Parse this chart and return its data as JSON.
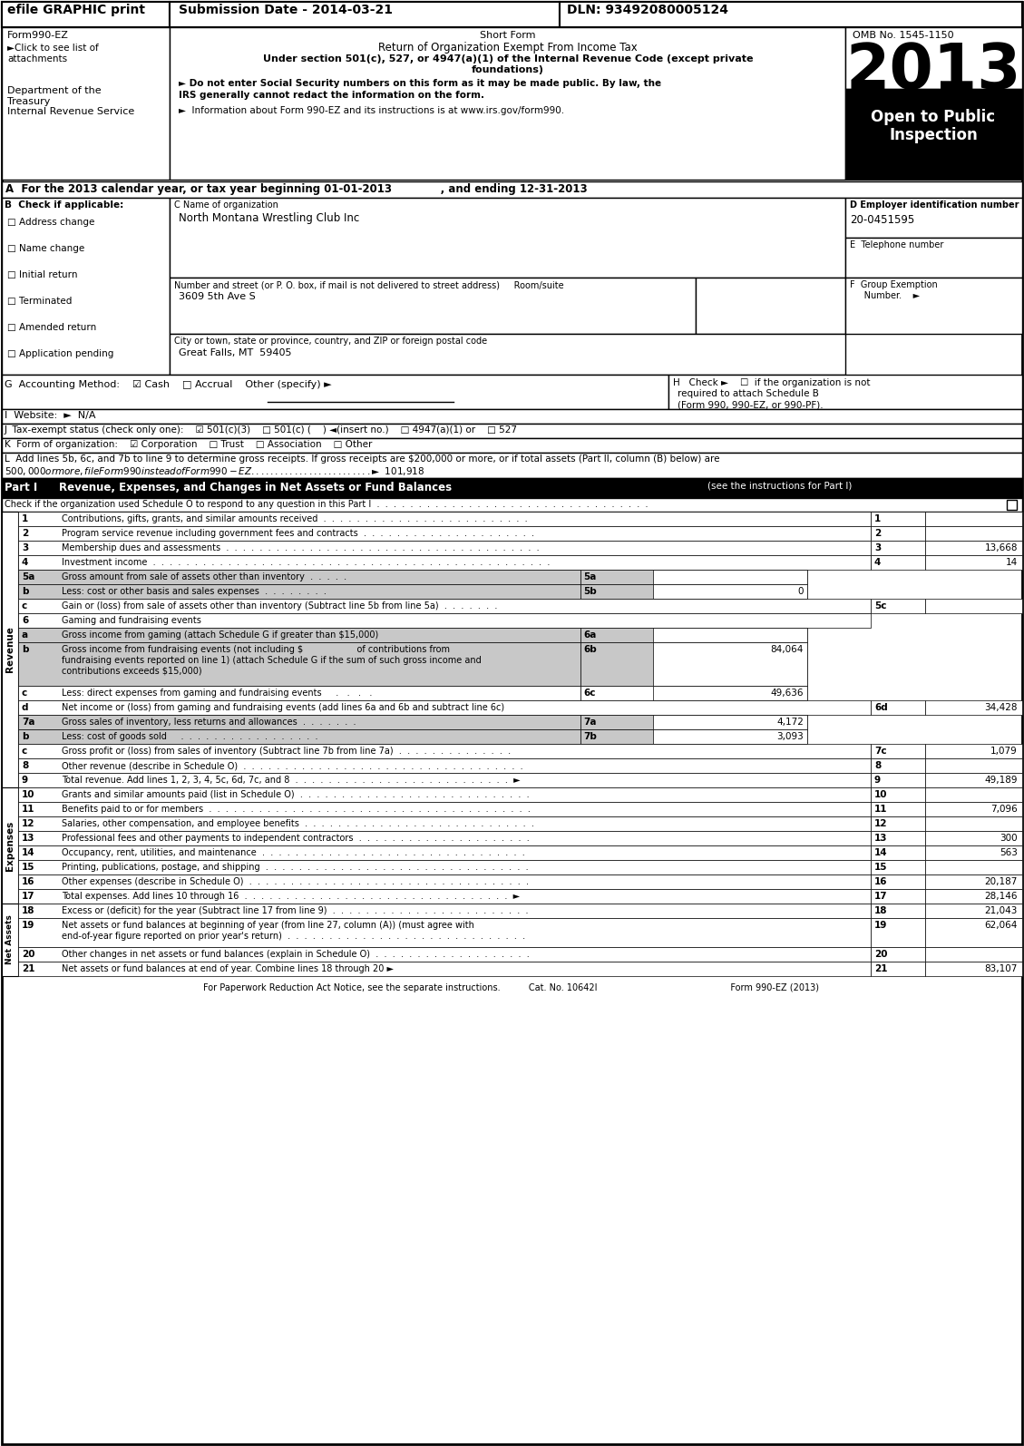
{
  "header": {
    "efile_text": "efile GRAPHIC print",
    "submission_date": "Submission Date - 2014-03-21",
    "dln": "DLN: 93492080005124",
    "omb": "OMB No. 1545-1150",
    "year": "2013",
    "open_to_public": "Open to Public\nInspection",
    "short_form": "Short Form",
    "return_title": "Return of Organization Exempt From Income Tax",
    "under_section": "Under section 501(c), 527, or 4947(a)(1) of the Internal Revenue Code (except private",
    "foundations": "foundations)",
    "do_not_enter": "► Do not enter Social Security numbers on this form as it may be made public. By law, the",
    "irs_redact": "IRS generally cannot redact the information on the form.",
    "info_about": "►  Information about Form 990-EZ and its instructions is at www.irs.gov/form990.",
    "form990ez": "Form990-EZ",
    "dept": "Department of the\nTreasury\nInternal Revenue Service"
  },
  "section_a": "A  For the 2013 calendar year, or tax year beginning 01-01-2013             , and ending 12-31-2013",
  "section_b_label": "B  Check if applicable:",
  "checkboxes_b": [
    "Address change",
    "Name change",
    "Initial return",
    "Terminated",
    "Amended return",
    "Application pending"
  ],
  "section_c_label": "C Name of organization",
  "org_name": "North Montana Wrestling Club Inc",
  "section_d_label": "D Employer identification number",
  "ein": "20-0451595",
  "section_e_label": "E  Telephone number",
  "address_label": "Number and street (or P. O. box, if mail is not delivered to street address)     Room/suite",
  "address": "3609 5th Ave S",
  "section_f_label": "F  Group Exemption\n     Number.    ►",
  "city_label": "City or town, state or province, country, and ZIP or foreign postal code",
  "city": "Great Falls, MT  59405",
  "section_g": "G  Accounting Method:    ☑ Cash    □ Accrual    Other (specify) ►",
  "section_h_line1": "H   Check ►    ☐  if the organization is not",
  "section_h_line2": "required to attach Schedule B",
  "section_h_line3": "(Form 990, 990-EZ, or 990-PF).",
  "section_i": "I  Website:  ►  N/A",
  "section_j": "J  Tax-exempt status (check only one):    ☑ 501(c)(3)    □ 501(c) (    ) ◄(insert no.)    □ 4947(a)(1) or    □ 527",
  "section_k": "K  Form of organization:    ☑ Corporation    □ Trust    □ Association    □ Other",
  "section_l_line1": "L  Add lines 5b, 6c, and 7b to line 9 to determine gross receipts. If gross receipts are $200,000 or more, or if total assets (Part II, column (B) below) are",
  "section_l_line2": "$500,000 or more, file Form 990 instead of Form 990-EZ  .  .  .  .  .  .  .  .  .  .  .  .  .  .  .  .  .  .  .  .  .  .  .  .  .  ►  $  101,918",
  "part_i_header": "Revenue, Expenses, and Changes in Net Assets or Fund Balances",
  "part_i_see": "(see the instructions for Part I)",
  "part_i_subheader": "Check if the organization used Schedule O to respond to any question in this Part I  .  .  .  .  .  .  .  .  .  .  .  .  .  .  .  .  .  .  .  .  .  .  .  .  .  .  .  .  .  .  .  .  .",
  "revenue_label": "Revenue",
  "expenses_label": "Expenses",
  "net_assets_label": "Net Assets",
  "footer": "For Paperwork Reduction Act Notice, see the separate instructions.          Cat. No. 10642I                                               Form 990-EZ (2013)"
}
